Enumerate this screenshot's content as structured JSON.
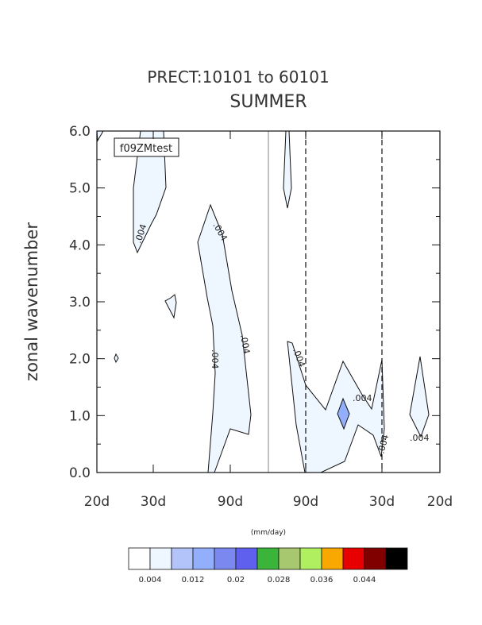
{
  "chart_data": {
    "type": "heatmap",
    "title": "PRECT:10101 to 60101",
    "subtitle": "SUMMER",
    "ylabel": "zonal wavenumber",
    "ylim": [
      0,
      6
    ],
    "yticks": [
      "0.0",
      "1.0",
      "2.0",
      "3.0",
      "4.0",
      "5.0",
      "6.0"
    ],
    "xticks": [
      "20d",
      "30d",
      "90d",
      "90d",
      "30d",
      "20d"
    ],
    "case_label": "f09ZMtest",
    "contour_labels": [
      ".004",
      ".004",
      ".004",
      ".004",
      ".004",
      ".004",
      ".004",
      ".004"
    ],
    "colorbar": {
      "units": "(mm/day)",
      "colors": [
        "#ffffff",
        "#eef6ff",
        "#b2c4fa",
        "#93aefa",
        "#7b88f0",
        "#6060ef",
        "#3ab53a",
        "#a8c870",
        "#b0f060",
        "#f8a800",
        "#e80000",
        "#800000",
        "#000000"
      ],
      "labels": [
        "0.004",
        "0.012",
        "0.02",
        "0.028",
        "0.036",
        "0.044"
      ]
    }
  }
}
